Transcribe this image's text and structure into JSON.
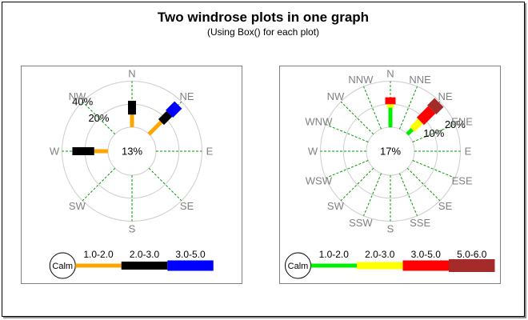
{
  "header": {
    "title": "Two windrose plots in one graph",
    "subtitle": "(Using Box() for each plot)"
  },
  "style": {
    "grid_color": "#CCCCCC",
    "radial_line_color": "#009900",
    "direction_label_color": "#808080",
    "plot_border_color": "#808080",
    "text_color": "#000000"
  },
  "chart_data": [
    {
      "type": "windrose",
      "position": "left",
      "center_label": "13%",
      "calm_percent": 13,
      "percent_per_ring": 20,
      "ring_labels": [
        "20%",
        "40%"
      ],
      "ring_label_direction_deg": 315,
      "directions": [
        "N",
        "NE",
        "E",
        "SE",
        "S",
        "SW",
        "W",
        "NW"
      ],
      "legend_calm_label": "Calm",
      "bins": [
        {
          "label": "1.0-2.0",
          "color": "#FFA500",
          "thickness": 5
        },
        {
          "label": "2.0-3.0",
          "color": "#000000",
          "thickness": 10
        },
        {
          "label": "3.0-5.0",
          "color": "#0000FF",
          "thickness": 13
        }
      ],
      "bars": [
        {
          "direction": "N",
          "segments_percent": [
            11,
            12,
            0
          ]
        },
        {
          "direction": "NE",
          "segments_percent": [
            15,
            10,
            11
          ]
        },
        {
          "direction": "W",
          "segments_percent": [
            12,
            19,
            0
          ]
        }
      ]
    },
    {
      "type": "windrose",
      "position": "right",
      "center_label": "17%",
      "calm_percent": 17,
      "percent_per_ring": 10,
      "ring_labels": [
        "10%",
        "20%"
      ],
      "ring_label_direction_deg": 67.5,
      "directions": [
        "N",
        "NNE",
        "NE",
        "ENE",
        "E",
        "ESE",
        "SE",
        "SSE",
        "S",
        "SSW",
        "SW",
        "WSW",
        "W",
        "WNW",
        "NW",
        "NNW"
      ],
      "legend_calm_label": "Calm",
      "bins": [
        {
          "label": "1.0-2.0",
          "color": "#00EE00",
          "thickness": 5
        },
        {
          "label": "2.0-3.0",
          "color": "#FFFF00",
          "thickness": 9
        },
        {
          "label": "3.0-5.0",
          "color": "#FF0000",
          "thickness": 13
        },
        {
          "label": "5.0-6.0",
          "color": "#A52A2A",
          "thickness": 16
        }
      ],
      "bars": [
        {
          "direction": "N",
          "segments_percent": [
            8.5,
            1.5,
            3,
            0
          ]
        },
        {
          "direction": "NE",
          "segments_percent": [
            3,
            5,
            7,
            4.5
          ]
        }
      ]
    }
  ]
}
